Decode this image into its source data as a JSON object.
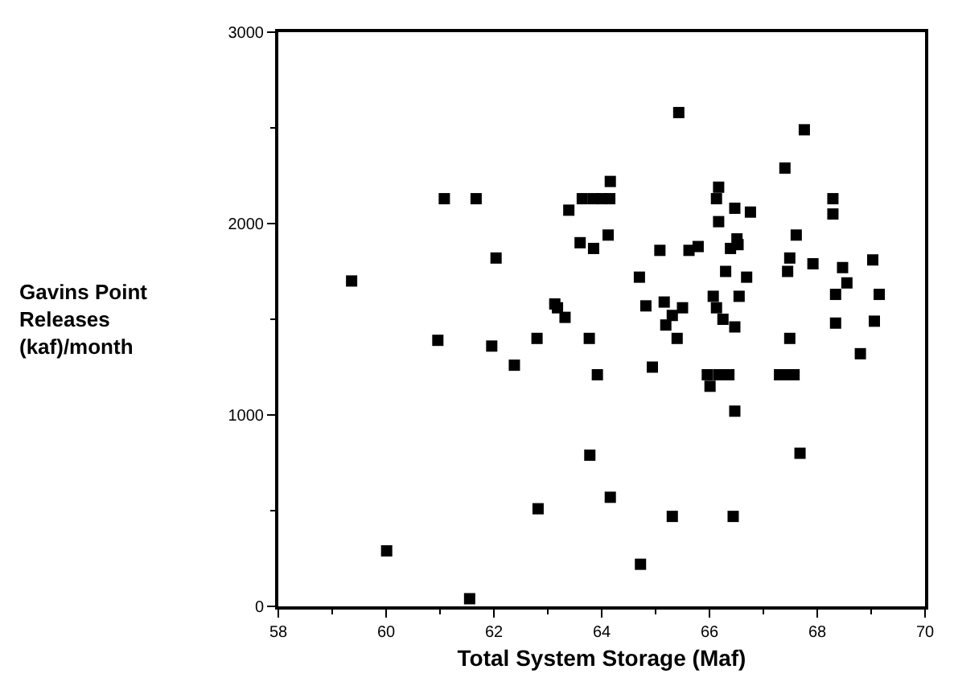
{
  "chart_data": {
    "type": "scatter",
    "xlabel": "Total System Storage (Maf)",
    "ylabel": "Gavins Point\nReleases\n(kaf)/month",
    "marker": "square",
    "xlim": [
      58,
      70
    ],
    "xticks": [
      58,
      60,
      62,
      64,
      66,
      68,
      70
    ],
    "ylim": [
      0,
      3000
    ],
    "yticks": [
      0,
      1000,
      2000,
      3000
    ],
    "series": [
      {
        "color": "#000000",
        "x": [
          59.36,
          61.08,
          61.67,
          63.39,
          63.64,
          63.85,
          64.0,
          64.15,
          63.6,
          63.85,
          62.04,
          63.13,
          63.18,
          63.32,
          60.96,
          61.96,
          62.38,
          62.8,
          63.77,
          63.92,
          63.78,
          62.82,
          60.01,
          61.55,
          65.43,
          67.76,
          64.16,
          67.4,
          66.17,
          66.13,
          66.47,
          66.76,
          66.17,
          68.29,
          68.29,
          64.12,
          67.61,
          65.08,
          65.62,
          65.79,
          66.39,
          66.53,
          66.51,
          67.49,
          67.45,
          67.92,
          68.47,
          68.55,
          68.34,
          68.34,
          69.03,
          69.15,
          69.06,
          68.8,
          64.7,
          64.82,
          65.16,
          65.5,
          65.31,
          65.19,
          65.4,
          66.3,
          66.69,
          66.55,
          66.07,
          66.13,
          66.25,
          66.47,
          67.49,
          64.94,
          65.96,
          66.01,
          66.17,
          66.36,
          67.3,
          67.42,
          67.57,
          66.47,
          67.68,
          64.16,
          65.31,
          66.44,
          64.72
        ],
        "values": [
          1700,
          2130,
          2130,
          2070,
          2130,
          2130,
          2130,
          2130,
          1900,
          1870,
          1820,
          1580,
          1560,
          1510,
          1390,
          1360,
          1260,
          1400,
          1400,
          1210,
          790,
          510,
          290,
          40,
          2580,
          2490,
          2220,
          2290,
          2190,
          2130,
          2080,
          2060,
          2010,
          2130,
          2050,
          1940,
          1940,
          1860,
          1860,
          1880,
          1870,
          1890,
          1920,
          1820,
          1750,
          1790,
          1770,
          1690,
          1630,
          1480,
          1810,
          1630,
          1490,
          1320,
          1720,
          1570,
          1590,
          1560,
          1520,
          1470,
          1400,
          1750,
          1720,
          1620,
          1620,
          1560,
          1500,
          1460,
          1400,
          1250,
          1210,
          1150,
          1210,
          1210,
          1210,
          1210,
          1210,
          1020,
          800,
          570,
          470,
          470,
          220
        ]
      }
    ]
  }
}
